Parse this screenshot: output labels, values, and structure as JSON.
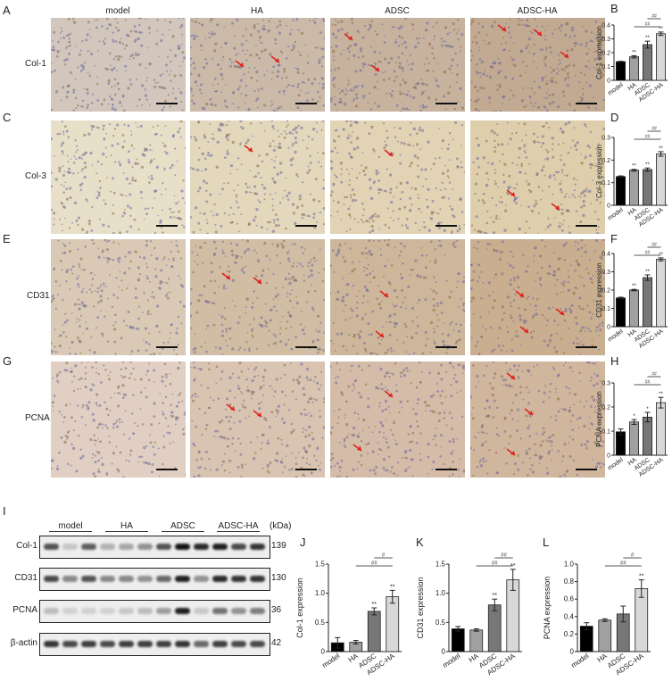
{
  "panel_letters": {
    "A": "A",
    "B": "B",
    "C": "C",
    "D": "D",
    "E": "E",
    "F": "F",
    "G": "G",
    "H": "H",
    "I": "I",
    "J": "J",
    "K": "K",
    "L": "L"
  },
  "columns": [
    "model",
    "HA",
    "ADSC",
    "ADSC-HA"
  ],
  "rows": [
    {
      "stain": "Col-1",
      "tint": "#b89a7a",
      "base": "#d9cfc9"
    },
    {
      "stain": "Col-3",
      "tint": "#d8c49a",
      "base": "#ece4d2"
    },
    {
      "stain": "CD31",
      "tint": "#c0a07a",
      "base": "#ddd0c0"
    },
    {
      "stain": "PCNA",
      "tint": "#c9a88a",
      "base": "#e4d6cc"
    }
  ],
  "arrow_color": "#e0201c",
  "blot": {
    "groups": [
      "model",
      "HA",
      "ADSC",
      "ADSC-HA"
    ],
    "unit": "(kDa)",
    "rows": [
      {
        "label": "Col-1",
        "kda": "139",
        "intensities": [
          0.7,
          0.15,
          0.65,
          0.25,
          0.3,
          0.4,
          0.7,
          1.0,
          0.9,
          0.95,
          0.75,
          0.85
        ]
      },
      {
        "label": "CD31",
        "kda": "130",
        "intensities": [
          0.75,
          0.45,
          0.7,
          0.45,
          0.45,
          0.4,
          0.6,
          0.95,
          0.4,
          0.9,
          0.85,
          0.85
        ]
      },
      {
        "label": "PCNA",
        "kda": "36",
        "intensities": [
          0.2,
          0.1,
          0.1,
          0.1,
          0.15,
          0.2,
          0.35,
          0.95,
          0.15,
          0.55,
          0.4,
          0.5
        ]
      },
      {
        "label": "β-actin",
        "kda": "42",
        "intensities": [
          0.85,
          0.75,
          0.8,
          0.75,
          0.8,
          0.8,
          0.8,
          0.85,
          0.6,
          0.8,
          0.75,
          0.75
        ]
      }
    ]
  },
  "chart_data": [
    {
      "id": "B",
      "type": "bar",
      "ylabel": "Col-1 expression",
      "categories": [
        "model",
        "HA",
        "ADSC",
        "ADSC-HA"
      ],
      "values": [
        0.135,
        0.17,
        0.258,
        0.337
      ],
      "errors": [
        0.003,
        0.008,
        0.025,
        0.012
      ],
      "ylim": [
        0,
        0.4
      ],
      "yticks": [
        "0",
        "0.1",
        "0.2",
        "0.3",
        "0.4"
      ],
      "stars": [
        "",
        "**",
        "**",
        "**"
      ],
      "brackets": [
        {
          "from": "HA",
          "to": "ADSC-HA",
          "label": "##"
        },
        {
          "from": "ADSC",
          "to": "ADSC-HA",
          "label": "##"
        }
      ],
      "colors": [
        "#000000",
        "#a0a0a0",
        "#777777",
        "#d8d8d8"
      ]
    },
    {
      "id": "D",
      "type": "bar",
      "ylabel": "Col-3 expression",
      "categories": [
        "model",
        "HA",
        "ADSC",
        "ADSC-HA"
      ],
      "values": [
        0.127,
        0.155,
        0.158,
        0.227
      ],
      "errors": [
        0.003,
        0.004,
        0.007,
        0.01
      ],
      "ylim": [
        0,
        0.3
      ],
      "yticks": [
        "0",
        "0.1",
        "0.2",
        "0.3"
      ],
      "stars": [
        "",
        "**",
        "**",
        "**"
      ],
      "brackets": [
        {
          "from": "HA",
          "to": "ADSC-HA",
          "label": "##"
        },
        {
          "from": "ADSC",
          "to": "ADSC-HA",
          "label": "##"
        }
      ],
      "colors": [
        "#000000",
        "#a0a0a0",
        "#777777",
        "#d8d8d8"
      ]
    },
    {
      "id": "F",
      "type": "bar",
      "ylabel": "CD31 expression",
      "categories": [
        "model",
        "HA",
        "ADSC",
        "ADSC-HA"
      ],
      "values": [
        0.157,
        0.2,
        0.268,
        0.368
      ],
      "errors": [
        0.004,
        0.004,
        0.015,
        0.008
      ],
      "ylim": [
        0,
        0.4
      ],
      "yticks": [
        "0",
        "0.1",
        "0.2",
        "0.3",
        "0.4"
      ],
      "stars": [
        "",
        "**",
        "**",
        "**"
      ],
      "brackets": [
        {
          "from": "HA",
          "to": "ADSC-HA",
          "label": "##"
        },
        {
          "from": "ADSC",
          "to": "ADSC-HA",
          "label": "##"
        }
      ],
      "colors": [
        "#000000",
        "#a0a0a0",
        "#777777",
        "#d8d8d8"
      ]
    },
    {
      "id": "H",
      "type": "bar",
      "ylabel": "PCNA expression",
      "categories": [
        "model",
        "HA",
        "ADSC",
        "ADSC-HA"
      ],
      "values": [
        0.097,
        0.138,
        0.158,
        0.218
      ],
      "errors": [
        0.012,
        0.01,
        0.02,
        0.022
      ],
      "ylim": [
        0,
        0.3
      ],
      "yticks": [
        "0",
        "0.1",
        "0.2",
        "0.3"
      ],
      "stars": [
        "",
        "*",
        "*",
        "**"
      ],
      "brackets": [
        {
          "from": "HA",
          "to": "ADSC-HA",
          "label": "##"
        },
        {
          "from": "ADSC",
          "to": "ADSC-HA",
          "label": "##"
        }
      ],
      "colors": [
        "#000000",
        "#a0a0a0",
        "#777777",
        "#d8d8d8"
      ]
    },
    {
      "id": "J",
      "type": "bar",
      "ylabel": "Col-1 expression",
      "categories": [
        "model",
        "HA",
        "ADSC",
        "ADSC-HA"
      ],
      "values": [
        0.15,
        0.16,
        0.69,
        0.94
      ],
      "errors": [
        0.09,
        0.03,
        0.06,
        0.11
      ],
      "ylim": [
        0,
        1.5
      ],
      "yticks": [
        "0",
        "0.5",
        "1.0",
        "1.5"
      ],
      "stars": [
        "",
        "",
        "**",
        "**"
      ],
      "brackets": [
        {
          "from": "HA",
          "to": "ADSC-HA",
          "label": "##"
        },
        {
          "from": "ADSC",
          "to": "ADSC-HA",
          "label": "#"
        }
      ],
      "colors": [
        "#000000",
        "#a0a0a0",
        "#777777",
        "#d8d8d8"
      ]
    },
    {
      "id": "K",
      "type": "bar",
      "ylabel": "CD31 expression",
      "categories": [
        "model",
        "HA",
        "ADSC",
        "ADSC-HA"
      ],
      "values": [
        0.39,
        0.37,
        0.8,
        1.23
      ],
      "errors": [
        0.04,
        0.02,
        0.1,
        0.18
      ],
      "ylim": [
        0,
        1.5
      ],
      "yticks": [
        "0",
        "0.5",
        "1.0",
        "1.5"
      ],
      "stars": [
        "",
        "",
        "**",
        "**"
      ],
      "brackets": [
        {
          "from": "HA",
          "to": "ADSC-HA",
          "label": "##"
        },
        {
          "from": "ADSC",
          "to": "ADSC-HA",
          "label": "##"
        }
      ],
      "colors": [
        "#000000",
        "#a0a0a0",
        "#777777",
        "#d8d8d8"
      ]
    },
    {
      "id": "L",
      "type": "bar",
      "ylabel": "PCNA expression",
      "categories": [
        "model",
        "HA",
        "ADSC",
        "ADSC-HA"
      ],
      "values": [
        0.29,
        0.36,
        0.43,
        0.72
      ],
      "errors": [
        0.04,
        0.015,
        0.09,
        0.1
      ],
      "ylim": [
        0,
        1.0
      ],
      "yticks": [
        "0",
        "0.2",
        "0.4",
        "0.6",
        "0.8",
        "1.0"
      ],
      "stars": [
        "",
        "",
        "",
        "**"
      ],
      "brackets": [
        {
          "from": "HA",
          "to": "ADSC-HA",
          "label": "##"
        },
        {
          "from": "ADSC",
          "to": "ADSC-HA",
          "label": "#"
        }
      ],
      "colors": [
        "#000000",
        "#a0a0a0",
        "#777777",
        "#d8d8d8"
      ]
    }
  ]
}
